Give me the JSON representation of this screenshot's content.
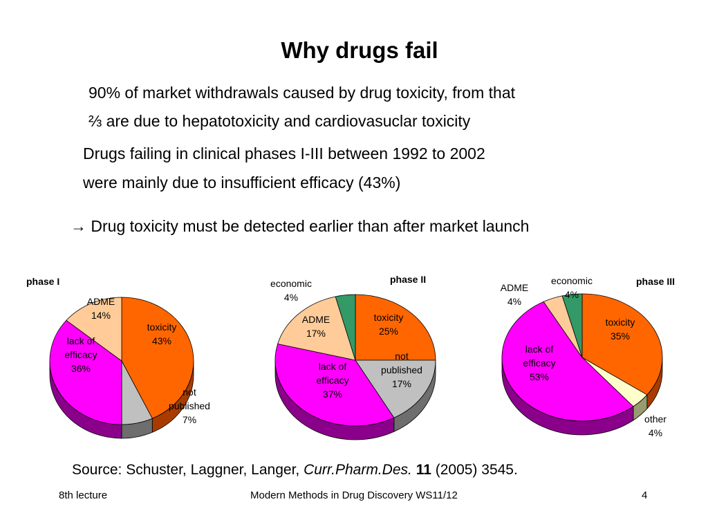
{
  "slide": {
    "title": "Why drugs fail",
    "bullet1_line1": "90% of market withdrawals caused by drug toxicity, from that",
    "bullet1_line2": "⅔ are due to hepatotoxicity and cardiovasuclar toxicity",
    "bullet2_line1": "Drugs failing in clinical phases I-III between 1992 to 2002",
    "bullet2_line2": "were mainly due to insufficient efficacy (43%)",
    "conclusion": "→ Drug toxicity must be detected earlier than after market launch"
  },
  "source": {
    "prefix": "Source: Schuster, Laggner, Langer, ",
    "journal": "Curr.Pharm.Des.",
    "volume": "11",
    "rest": " (2005) 3545."
  },
  "footer": {
    "left": "8th lecture",
    "center": "Modern Methods in Drug Discovery WS11/12",
    "page": "4"
  },
  "chart_data": [
    {
      "type": "pie",
      "title": "phase I",
      "unit": "%",
      "slices": [
        {
          "label": "toxicity",
          "value": 43,
          "color": "#FF6600",
          "side": "#A83C00"
        },
        {
          "label": "not published",
          "value": 7,
          "color": "#C0C0C0",
          "side": "#6E6E6E"
        },
        {
          "label": "lack of efficacy",
          "value": 36,
          "color": "#FF00FF",
          "side": "#8A008A"
        },
        {
          "label": "ADME",
          "value": 14,
          "color": "#FFCC99",
          "side": "#B08050"
        }
      ]
    },
    {
      "type": "pie",
      "title": "phase II",
      "unit": "%",
      "slices": [
        {
          "label": "toxicity",
          "value": 25,
          "color": "#FF6600",
          "side": "#A83C00"
        },
        {
          "label": "not published",
          "value": 17,
          "color": "#C0C0C0",
          "side": "#6E6E6E"
        },
        {
          "label": "lack of efficacy",
          "value": 37,
          "color": "#FF00FF",
          "side": "#8A008A"
        },
        {
          "label": "ADME",
          "value": 17,
          "color": "#FFCC99",
          "side": "#B08050"
        },
        {
          "label": "economic",
          "value": 4,
          "color": "#339966",
          "side": "#1E5C3C"
        }
      ]
    },
    {
      "type": "pie",
      "title": "phase III",
      "unit": "%",
      "slices": [
        {
          "label": "toxicity",
          "value": 35,
          "color": "#FF6600",
          "side": "#A83C00"
        },
        {
          "label": "other",
          "value": 4,
          "color": "#FFFFCC",
          "side": "#9A9A70"
        },
        {
          "label": "lack of efficacy",
          "value": 53,
          "color": "#FF00FF",
          "side": "#8A008A"
        },
        {
          "label": "ADME",
          "value": 4,
          "color": "#FFCC99",
          "side": "#B08050"
        },
        {
          "label": "economic",
          "value": 4,
          "color": "#339966",
          "side": "#1E5C3C"
        }
      ]
    }
  ]
}
